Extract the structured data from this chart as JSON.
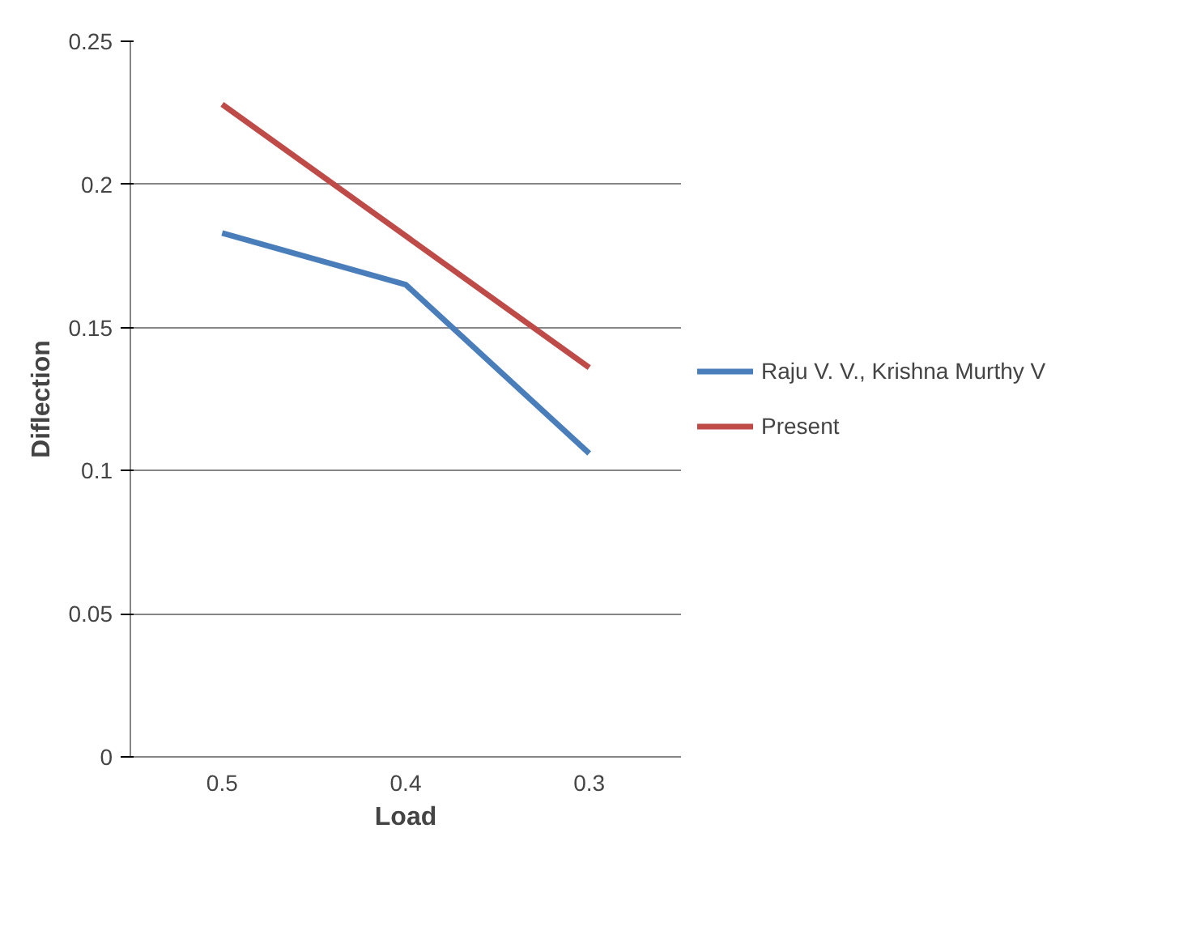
{
  "chart_data": {
    "type": "line",
    "xlabel": "Load",
    "ylabel": "Diflection",
    "categories": [
      "0.5",
      "0.4",
      "0.3"
    ],
    "series": [
      {
        "name": "Raju V. V., Krishna Murthy V",
        "color": "#4a7ebb",
        "values": [
          0.183,
          0.165,
          0.106
        ]
      },
      {
        "name": "Present",
        "color": "#be4b48",
        "values": [
          0.228,
          0.182,
          0.136
        ]
      }
    ],
    "ylim": [
      0,
      0.25
    ],
    "yticks": [
      0,
      0.05,
      0.1,
      0.15,
      0.2,
      0.25
    ],
    "grid": "y",
    "legend": "right",
    "marker": "none",
    "line_style": "solid"
  }
}
